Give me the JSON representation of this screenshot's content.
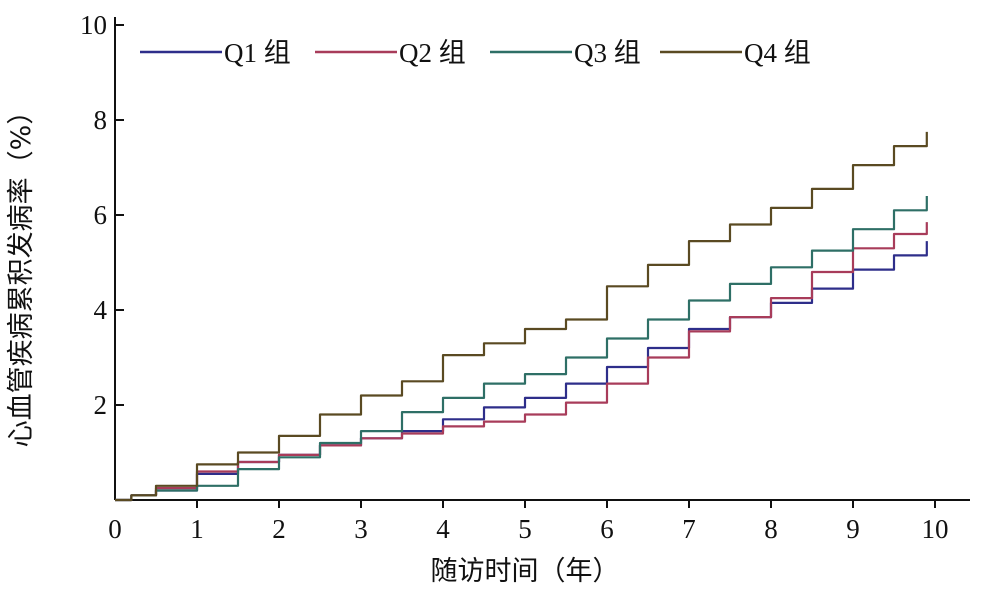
{
  "chart_data": {
    "type": "line",
    "title": "",
    "xlabel": "随访时间（年）",
    "ylabel": "心血管疾病累积发病率（%）",
    "xlim": [
      0,
      10
    ],
    "ylim": [
      0,
      10
    ],
    "x_ticks": [
      "0",
      "1",
      "2",
      "3",
      "4",
      "5",
      "6",
      "7",
      "8",
      "9",
      "10"
    ],
    "y_ticks": [
      "2",
      "4",
      "6",
      "8",
      "10"
    ],
    "legend_position": "top",
    "grid": false,
    "series": [
      {
        "name": "Q1 组",
        "color": "#2e2e8a",
        "x": [
          0.2,
          0.5,
          1.0,
          1.5,
          2.0,
          2.5,
          3.0,
          3.5,
          4.0,
          4.5,
          5.0,
          5.5,
          6.0,
          6.5,
          7.0,
          7.5,
          8.0,
          8.5,
          9.0,
          9.5,
          9.9
        ],
        "y": [
          0.1,
          0.2,
          0.55,
          0.8,
          0.95,
          1.15,
          1.3,
          1.45,
          1.7,
          1.95,
          2.15,
          2.45,
          2.8,
          3.2,
          3.6,
          3.85,
          4.15,
          4.45,
          4.85,
          5.15,
          5.45
        ]
      },
      {
        "name": "Q2 组",
        "color": "#a83c5a",
        "x": [
          0.2,
          0.5,
          1.0,
          1.5,
          2.0,
          2.5,
          3.0,
          3.5,
          4.0,
          4.5,
          5.0,
          5.5,
          6.0,
          6.5,
          7.0,
          7.5,
          8.0,
          8.5,
          9.0,
          9.5,
          9.9
        ],
        "y": [
          0.1,
          0.25,
          0.6,
          0.8,
          0.95,
          1.15,
          1.3,
          1.4,
          1.55,
          1.65,
          1.8,
          2.05,
          2.45,
          3.0,
          3.55,
          3.85,
          4.25,
          4.8,
          5.3,
          5.6,
          5.85
        ]
      },
      {
        "name": "Q3 组",
        "color": "#2e6f66",
        "x": [
          0.2,
          0.5,
          1.0,
          1.5,
          2.0,
          2.5,
          3.0,
          3.5,
          4.0,
          4.5,
          5.0,
          5.5,
          6.0,
          6.5,
          7.0,
          7.5,
          8.0,
          8.5,
          9.0,
          9.5,
          9.9
        ],
        "y": [
          0.1,
          0.2,
          0.3,
          0.65,
          0.9,
          1.2,
          1.45,
          1.85,
          2.15,
          2.45,
          2.65,
          3.0,
          3.4,
          3.8,
          4.2,
          4.55,
          4.9,
          5.25,
          5.7,
          6.1,
          6.4
        ]
      },
      {
        "name": "Q4 组",
        "color": "#5a4a22",
        "x": [
          0.2,
          0.5,
          1.0,
          1.5,
          2.0,
          2.5,
          3.0,
          3.5,
          4.0,
          4.5,
          5.0,
          5.5,
          6.0,
          6.5,
          7.0,
          7.5,
          8.0,
          8.5,
          9.0,
          9.5,
          9.9
        ],
        "y": [
          0.1,
          0.3,
          0.75,
          1.0,
          1.35,
          1.8,
          2.2,
          2.5,
          3.05,
          3.3,
          3.6,
          3.8,
          4.5,
          4.95,
          5.45,
          5.8,
          6.15,
          6.55,
          7.05,
          7.45,
          7.75
        ]
      }
    ]
  }
}
